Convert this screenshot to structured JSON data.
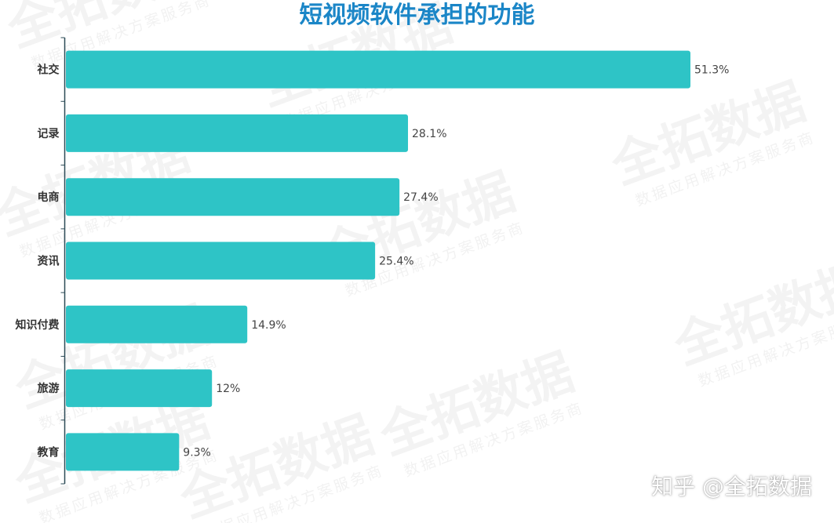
{
  "colors": {
    "bar": "#2ec4c6",
    "title": "#1b86c7",
    "axis": "#2d4b57"
  },
  "watermark": {
    "brand": "全拓数据",
    "tagline": "数据应用解决方案服务商"
  },
  "source_note": "知乎 @全拓数据",
  "chart_data": {
    "type": "bar",
    "orientation": "horizontal",
    "title": "短视频软件承担的功能",
    "categories": [
      "社交",
      "记录",
      "电商",
      "资讯",
      "知识付费",
      "旅游",
      "教育"
    ],
    "values": [
      51.3,
      28.1,
      27.4,
      25.4,
      14.9,
      12,
      9.3
    ],
    "value_labels": [
      "51.3%",
      "28.1%",
      "27.4%",
      "25.4%",
      "14.9%",
      "12%",
      "9.3%"
    ],
    "unit": "%",
    "xlabel": "",
    "ylabel": "",
    "grid": false,
    "legend": "none"
  }
}
